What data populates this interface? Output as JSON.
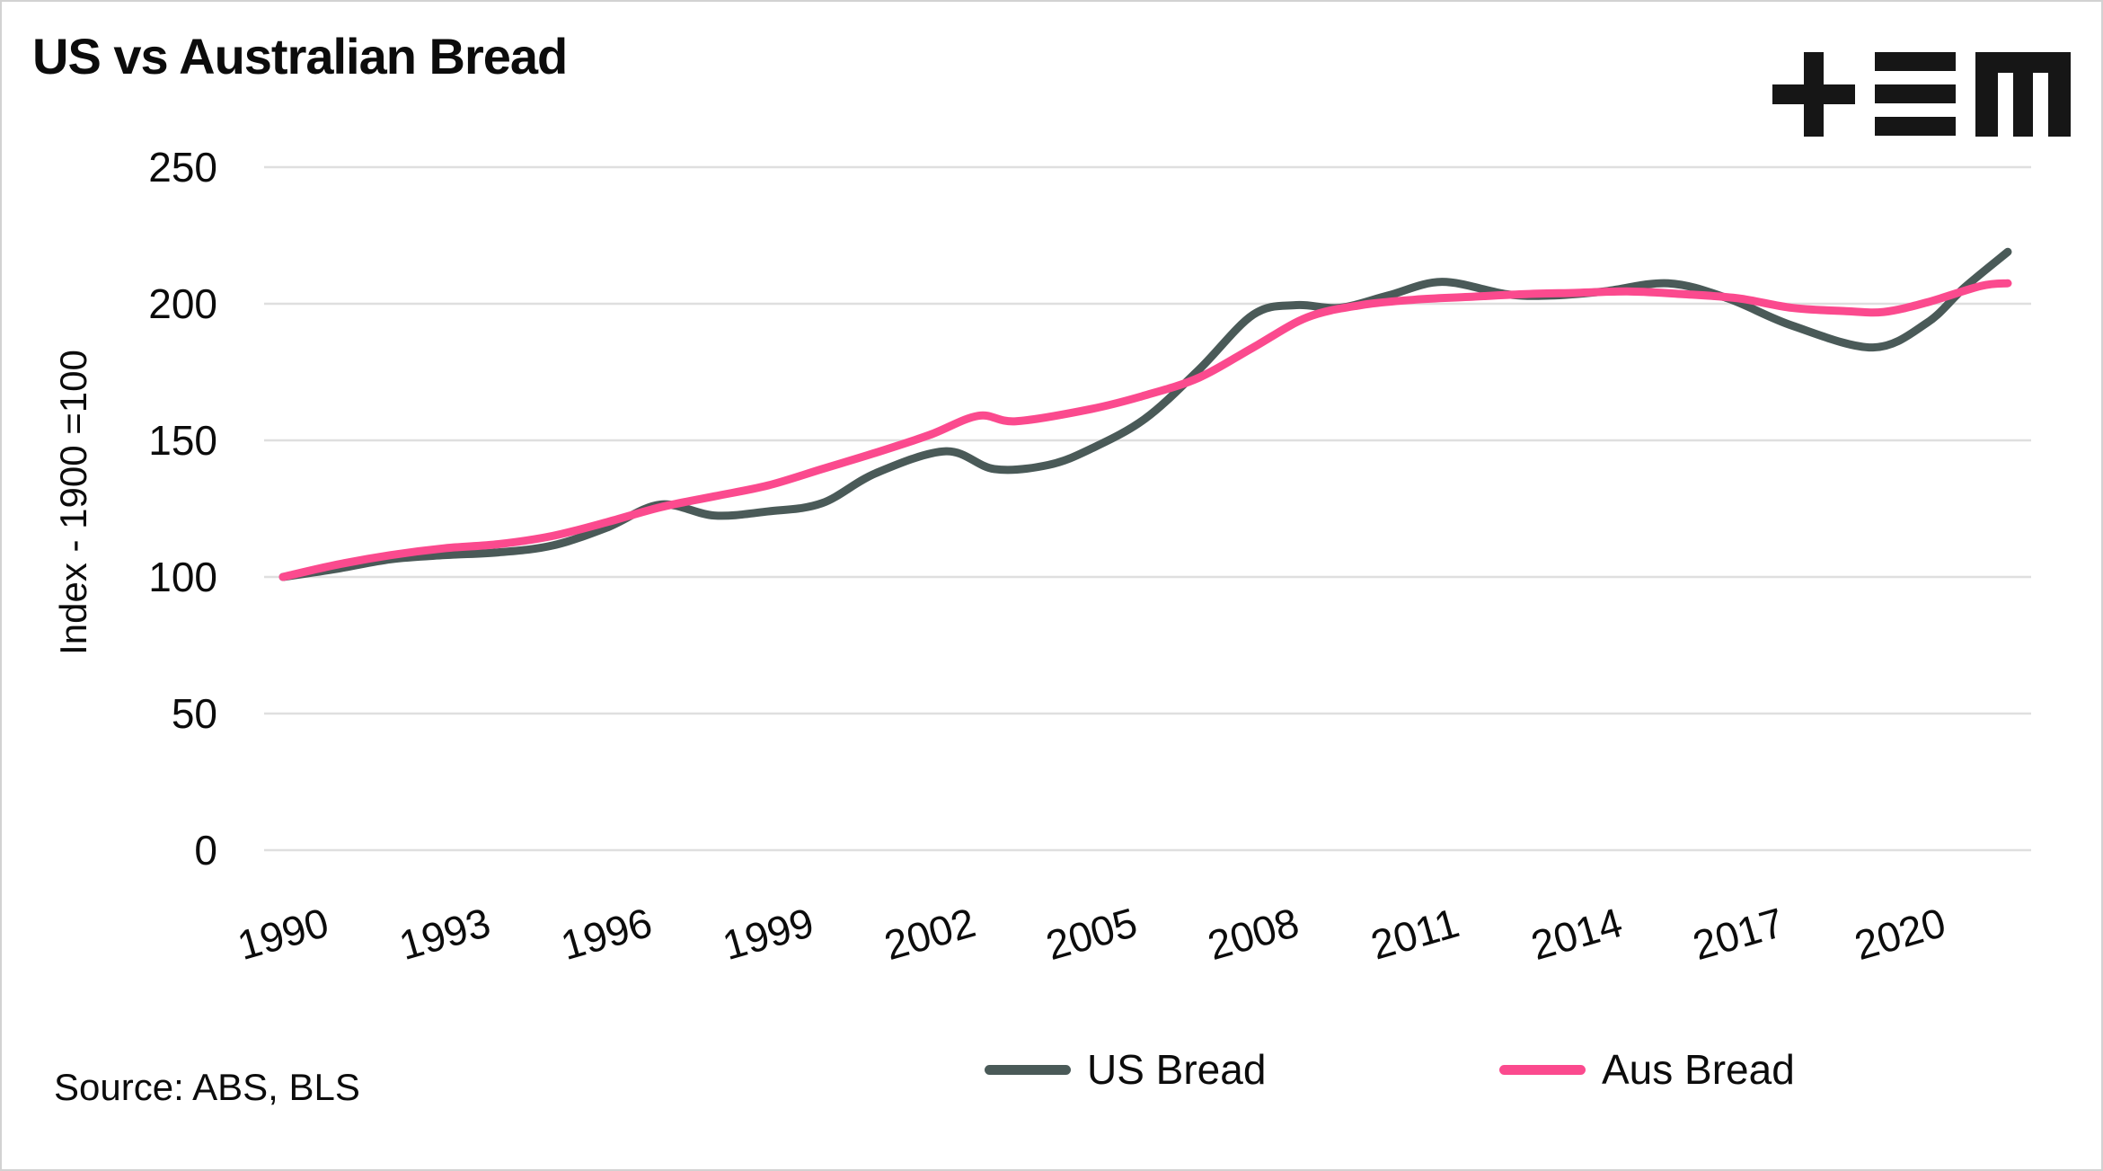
{
  "title": "US vs Australian Bread",
  "icons": {
    "logo": "plus-equals-m-logo"
  },
  "source": {
    "label": "Source: ABS, BLS"
  },
  "chart_data": {
    "type": "line",
    "title": "US vs Australian Bread",
    "xlabel": "",
    "ylabel": "Index - 1900 =100",
    "source_note": "Source: ABS, BLS",
    "x_ticks": [
      1990,
      1993,
      1996,
      1999,
      2002,
      2005,
      2008,
      2011,
      2014,
      2017,
      2020
    ],
    "y_ticks": [
      0,
      50,
      100,
      150,
      200,
      250
    ],
    "ylim": [
      0,
      250
    ],
    "xlim": [
      1989.6,
      2022.4
    ],
    "grid": "horizontal",
    "legend_position": "bottom",
    "series": [
      {
        "name": "US Bread",
        "color": "#4a5a58",
        "points": [
          [
            1990,
            100
          ],
          [
            1991,
            103
          ],
          [
            1992,
            106.5
          ],
          [
            1993,
            108
          ],
          [
            1994,
            109
          ],
          [
            1995,
            111.5
          ],
          [
            1996,
            118
          ],
          [
            1997,
            126.5
          ],
          [
            1998,
            122.5
          ],
          [
            1999,
            124
          ],
          [
            2000,
            127
          ],
          [
            2001,
            138
          ],
          [
            2002.3,
            146
          ],
          [
            2003.2,
            139.5
          ],
          [
            2004.2,
            141
          ],
          [
            2005,
            147
          ],
          [
            2006,
            158
          ],
          [
            2007,
            176
          ],
          [
            2008,
            196
          ],
          [
            2008.8,
            199.5
          ],
          [
            2009.6,
            198.5
          ],
          [
            2010.5,
            203
          ],
          [
            2011.5,
            208
          ],
          [
            2012.7,
            203.5
          ],
          [
            2013.5,
            203
          ],
          [
            2014.5,
            204.5
          ],
          [
            2015.7,
            207.5
          ],
          [
            2016.8,
            202
          ],
          [
            2018,
            192
          ],
          [
            2019.5,
            184
          ],
          [
            2020.5,
            193
          ],
          [
            2021.2,
            206
          ],
          [
            2022,
            219
          ]
        ]
      },
      {
        "name": "Aus Bread",
        "color": "#fb4a8e",
        "points": [
          [
            1990,
            100
          ],
          [
            1991,
            104.5
          ],
          [
            1992,
            108
          ],
          [
            1993,
            110.5
          ],
          [
            1994,
            112
          ],
          [
            1995,
            115
          ],
          [
            1996,
            120
          ],
          [
            1997,
            125.5
          ],
          [
            1998,
            129.5
          ],
          [
            1999,
            133.5
          ],
          [
            2000,
            139.5
          ],
          [
            2001,
            145.5
          ],
          [
            2002,
            152
          ],
          [
            2002.9,
            159
          ],
          [
            2003.6,
            157
          ],
          [
            2005,
            161.5
          ],
          [
            2006,
            166.5
          ],
          [
            2007,
            173
          ],
          [
            2008,
            184
          ],
          [
            2009,
            195
          ],
          [
            2010,
            199.5
          ],
          [
            2011,
            201.5
          ],
          [
            2012,
            202.5
          ],
          [
            2013,
            203.5
          ],
          [
            2014,
            204
          ],
          [
            2015,
            204.5
          ],
          [
            2016,
            203.5
          ],
          [
            2017,
            202
          ],
          [
            2018,
            198.5
          ],
          [
            2019,
            197.3
          ],
          [
            2019.7,
            197
          ],
          [
            2020.5,
            200.5
          ],
          [
            2021.5,
            206.5
          ],
          [
            2022,
            207.5
          ]
        ]
      }
    ]
  }
}
